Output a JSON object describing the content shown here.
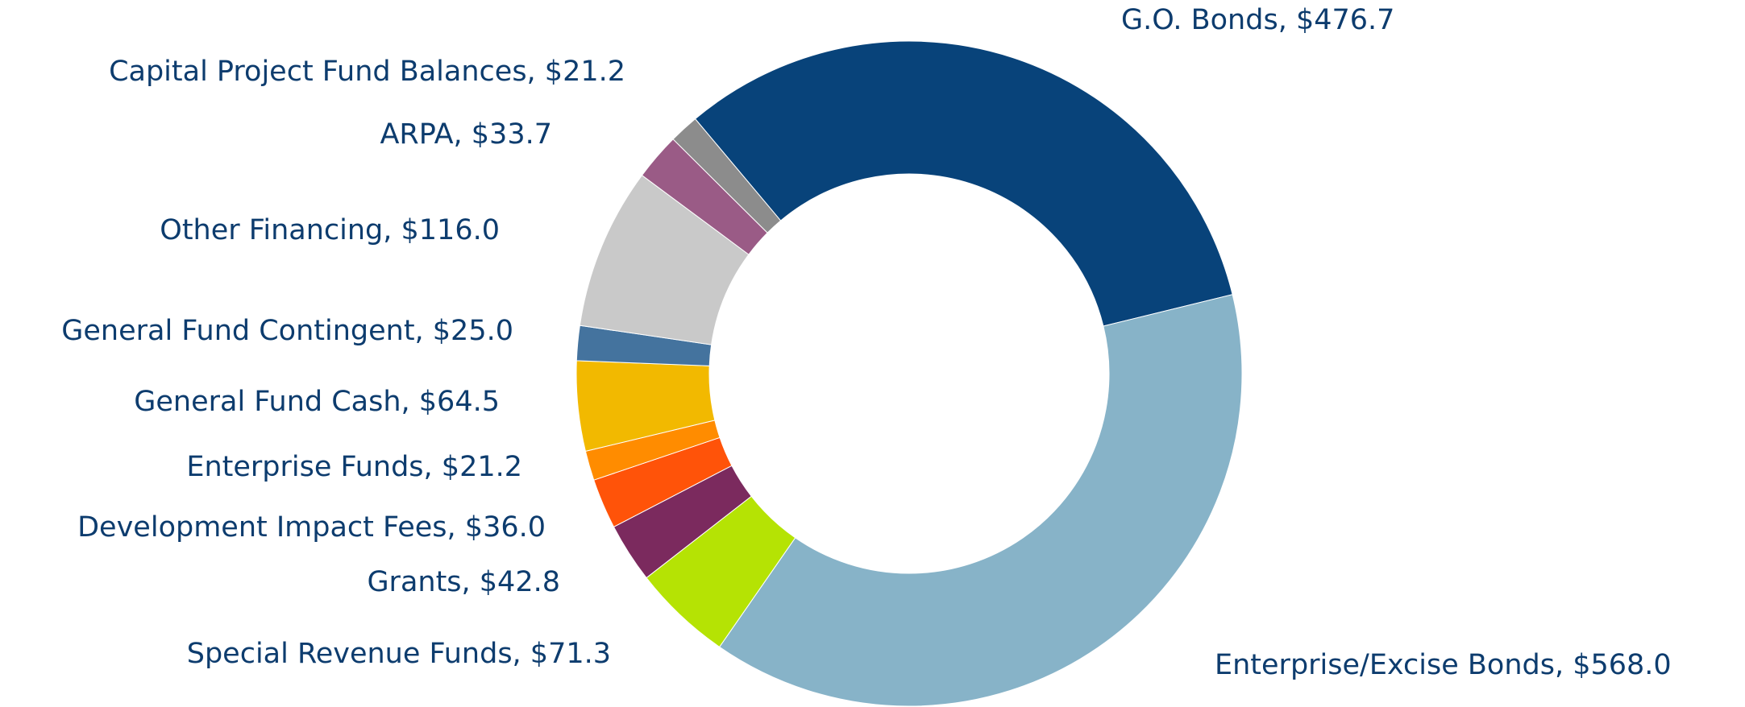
{
  "chart_data": {
    "type": "donut",
    "values": [
      476.7,
      568.0,
      71.3,
      42.8,
      36.0,
      21.2,
      64.5,
      25.0,
      116.0,
      33.7,
      21.2
    ],
    "value_labels": [
      "G.O. Bonds, $476.7",
      "Enterprise/Excise Bonds, $568.0",
      "Special Revenue Funds, $71.3",
      "Grants, $42.8",
      "Development Impact Fees, $36.0",
      "Enterprise Funds, $21.2",
      "General Fund Cash, $64.5",
      "General Fund Contingent, $25.0",
      "Other Financing, $116.0",
      "ARPA, $33.7",
      "Capital Project Fund Balances, $21.2"
    ],
    "colors": [
      "#08437a",
      "#87b3c8",
      "#b5e304",
      "#7b2a5e",
      "#ff5309",
      "#ff8c00",
      "#f2b900",
      "#44739e",
      "#c9c9c9",
      "#9a5b86",
      "#8c8c8c"
    ]
  }
}
